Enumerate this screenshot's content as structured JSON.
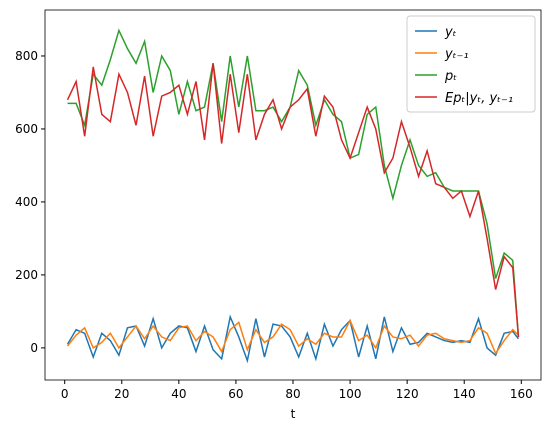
{
  "chart_data": {
    "type": "line",
    "xlabel": "t",
    "x": [
      1,
      4,
      7,
      10,
      13,
      16,
      19,
      22,
      25,
      28,
      31,
      34,
      37,
      40,
      43,
      46,
      49,
      52,
      55,
      58,
      61,
      64,
      67,
      70,
      73,
      76,
      79,
      82,
      85,
      88,
      91,
      94,
      97,
      100,
      103,
      106,
      109,
      112,
      115,
      118,
      121,
      124,
      127,
      130,
      133,
      136,
      139,
      142,
      145,
      148,
      151,
      154,
      157,
      159
    ],
    "series": [
      {
        "name": "yₜ",
        "color": "#1f77b4",
        "values": [
          10,
          50,
          40,
          -25,
          40,
          20,
          -20,
          55,
          60,
          5,
          80,
          0,
          40,
          60,
          55,
          -10,
          60,
          -5,
          -30,
          85,
          30,
          -35,
          80,
          -25,
          65,
          60,
          30,
          -25,
          40,
          -30,
          65,
          5,
          50,
          75,
          -25,
          60,
          -30,
          85,
          -10,
          55,
          10,
          15,
          40,
          30,
          20,
          15,
          20,
          15,
          80,
          0,
          -20,
          40,
          45,
          25
        ]
      },
      {
        "name": "yₜ₋₁",
        "color": "#ff7f0e",
        "values": [
          5,
          35,
          55,
          0,
          15,
          40,
          0,
          30,
          60,
          25,
          60,
          30,
          20,
          55,
          60,
          20,
          45,
          30,
          -10,
          50,
          70,
          -5,
          50,
          15,
          30,
          65,
          50,
          5,
          25,
          10,
          40,
          30,
          30,
          75,
          20,
          35,
          0,
          60,
          30,
          25,
          35,
          5,
          35,
          40,
          25,
          20,
          15,
          20,
          55,
          40,
          -15,
          20,
          50,
          35
        ]
      },
      {
        "name": "pₜ",
        "color": "#2ca02c",
        "values": [
          670,
          670,
          610,
          750,
          720,
          790,
          870,
          820,
          780,
          840,
          700,
          800,
          760,
          640,
          730,
          650,
          660,
          780,
          620,
          800,
          660,
          800,
          650,
          650,
          660,
          620,
          660,
          760,
          720,
          610,
          680,
          640,
          620,
          520,
          530,
          640,
          660,
          500,
          410,
          500,
          570,
          500,
          470,
          480,
          440,
          430,
          430,
          430,
          430,
          340,
          190,
          260,
          240,
          30
        ]
      },
      {
        "name": "Epₜ|yₜ, yₜ₋₁",
        "color": "#d62728",
        "values": [
          680,
          730,
          580,
          770,
          640,
          620,
          750,
          700,
          610,
          745,
          580,
          690,
          700,
          720,
          640,
          730,
          570,
          780,
          560,
          750,
          590,
          750,
          570,
          640,
          680,
          600,
          660,
          680,
          710,
          580,
          690,
          660,
          570,
          520,
          590,
          660,
          600,
          480,
          520,
          620,
          550,
          470,
          540,
          450,
          440,
          410,
          430,
          360,
          430,
          300,
          160,
          250,
          220,
          30
        ]
      }
    ],
    "xlim": [
      -6.9,
      166.9
    ],
    "xticks": [
      0,
      20,
      40,
      60,
      80,
      100,
      120,
      140,
      160
    ],
    "ylim": [
      -88,
      926
    ],
    "yticks": [
      0,
      200,
      400,
      600,
      800
    ],
    "legend": "upper right"
  }
}
